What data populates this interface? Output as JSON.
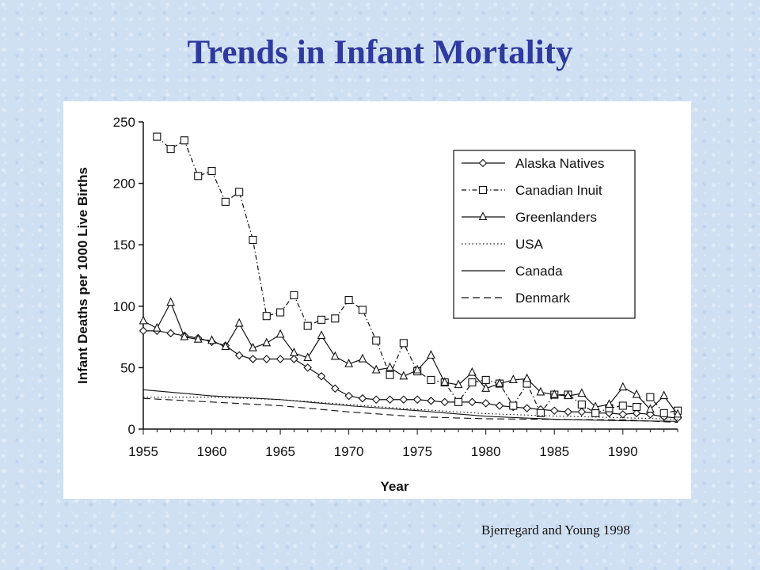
{
  "slide": {
    "title": "Trends in Infant Mortality",
    "source": "Bjerregard and Young 1998"
  },
  "colors": {
    "title": "#2f3a9e",
    "background": "#cfe0f3",
    "ink": "#111111"
  },
  "chart_data": {
    "type": "line",
    "title": "",
    "xlabel": "Year",
    "ylabel": "Infant Deaths per 1000 Live Births",
    "xlim": [
      1955,
      1994
    ],
    "ylim": [
      0,
      250
    ],
    "xticks": [
      1955,
      1960,
      1965,
      1970,
      1975,
      1980,
      1985,
      1990
    ],
    "yticks": [
      0,
      50,
      100,
      150,
      200,
      250
    ],
    "grid": false,
    "legend_position": "top-right",
    "series": [
      {
        "name": "Alaska Natives",
        "marker": "diamond",
        "dash": "solid",
        "x": [
          1955,
          1956,
          1957,
          1958,
          1959,
          1960,
          1961,
          1962,
          1963,
          1964,
          1965,
          1966,
          1967,
          1968,
          1969,
          1970,
          1971,
          1972,
          1973,
          1974,
          1975,
          1976,
          1977,
          1978,
          1979,
          1980,
          1981,
          1982,
          1983,
          1984,
          1985,
          1986,
          1987,
          1988,
          1989,
          1990,
          1991,
          1992,
          1993,
          1994
        ],
        "y": [
          80,
          80,
          78,
          76,
          74,
          71,
          68,
          60,
          57,
          57,
          57,
          57,
          50,
          43,
          33,
          27,
          25,
          24,
          24,
          24,
          24,
          23,
          22,
          22,
          22,
          21,
          19,
          18,
          17,
          16,
          15,
          14,
          14,
          13,
          13,
          12,
          13,
          12,
          10,
          9
        ]
      },
      {
        "name": "Canadian Inuit",
        "marker": "square",
        "dash": "dashdot",
        "x": [
          1956,
          1957,
          1958,
          1959,
          1960,
          1961,
          1962,
          1963,
          1964,
          1965,
          1966,
          1967,
          1968,
          1969,
          1970,
          1971,
          1972,
          1973,
          1974,
          1975,
          1976,
          1977,
          1978,
          1979,
          1980,
          1981,
          1982,
          1983,
          1984,
          1985,
          1986,
          1987,
          1988,
          1989,
          1990,
          1991,
          1992,
          1993,
          1994
        ],
        "y": [
          238,
          228,
          235,
          206,
          210,
          185,
          193,
          154,
          92,
          95,
          109,
          84,
          89,
          90,
          105,
          97,
          72,
          44,
          70,
          47,
          40,
          38,
          22,
          38,
          40,
          37,
          19,
          37,
          13,
          28,
          28,
          20,
          13,
          17,
          19,
          18,
          26,
          13,
          15
        ]
      },
      {
        "name": "Greenlanders",
        "marker": "triangle",
        "dash": "solid",
        "x": [
          1955,
          1956,
          1957,
          1958,
          1959,
          1960,
          1961,
          1962,
          1963,
          1964,
          1965,
          1966,
          1967,
          1968,
          1969,
          1970,
          1971,
          1972,
          1973,
          1974,
          1975,
          1976,
          1977,
          1978,
          1979,
          1980,
          1981,
          1982,
          1983,
          1984,
          1985,
          1986,
          1987,
          1988,
          1989,
          1990,
          1991,
          1992,
          1993,
          1994
        ],
        "y": [
          88,
          82,
          103,
          75,
          73,
          72,
          67,
          86,
          66,
          70,
          77,
          62,
          58,
          76,
          59,
          53,
          57,
          48,
          50,
          43,
          48,
          60,
          38,
          36,
          46,
          33,
          37,
          40,
          41,
          30,
          28,
          27,
          29,
          18,
          20,
          34,
          28,
          16,
          27,
          12
        ]
      },
      {
        "name": "USA",
        "marker": "none",
        "dash": "dotted",
        "x": [
          1955,
          1960,
          1965,
          1970,
          1975,
          1980,
          1985,
          1990,
          1994
        ],
        "y": [
          26,
          26,
          24,
          20,
          16,
          12.6,
          10.6,
          9.2,
          8
        ]
      },
      {
        "name": "Canada",
        "marker": "none",
        "dash": "solid",
        "x": [
          1955,
          1960,
          1965,
          1970,
          1975,
          1980,
          1985,
          1990,
          1994
        ],
        "y": [
          32,
          27,
          24,
          19,
          15,
          10.4,
          8,
          6.8,
          6.3
        ]
      },
      {
        "name": "Denmark",
        "marker": "none",
        "dash": "dashed",
        "x": [
          1955,
          1960,
          1965,
          1970,
          1975,
          1980,
          1985,
          1990,
          1994
        ],
        "y": [
          25,
          22,
          19,
          14,
          10,
          8.4,
          7.9,
          7.5,
          5.5
        ]
      }
    ]
  }
}
